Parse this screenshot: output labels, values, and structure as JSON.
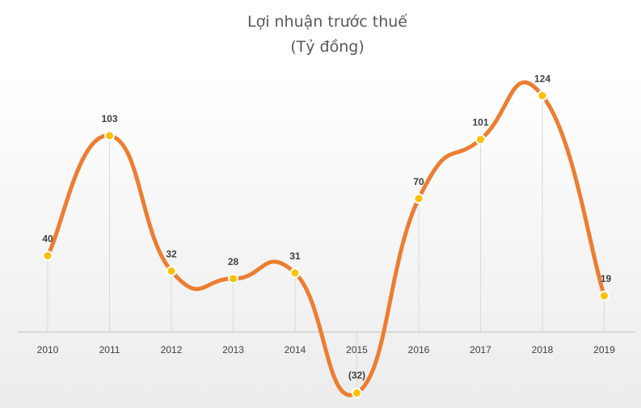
{
  "chart_data": {
    "type": "line",
    "title": "Lợi nhuận trước thuế",
    "subtitle": "(Tỷ đồng)",
    "categories": [
      "2010",
      "2011",
      "2012",
      "2013",
      "2014",
      "2015",
      "2016",
      "2017",
      "2018",
      "2019"
    ],
    "values": [
      40,
      103,
      32,
      28,
      31,
      -32,
      70,
      101,
      124,
      19
    ],
    "value_labels": [
      "40",
      "103",
      "32",
      "28",
      "31",
      "(32)",
      "70",
      "101",
      "124",
      "19"
    ],
    "xlabel": "",
    "ylabel": "",
    "ylim": [
      -32,
      124
    ],
    "smooth": true,
    "grid": false,
    "colors": {
      "line": "#ED7D31",
      "marker_fill": "#FFC000",
      "marker_stroke": "#ffffff",
      "drop_line": "#d9d9d9",
      "axis": "#bfbfbf",
      "background_gradient_top": "#ffffff",
      "background_gradient_bottom": "#ececec"
    }
  }
}
